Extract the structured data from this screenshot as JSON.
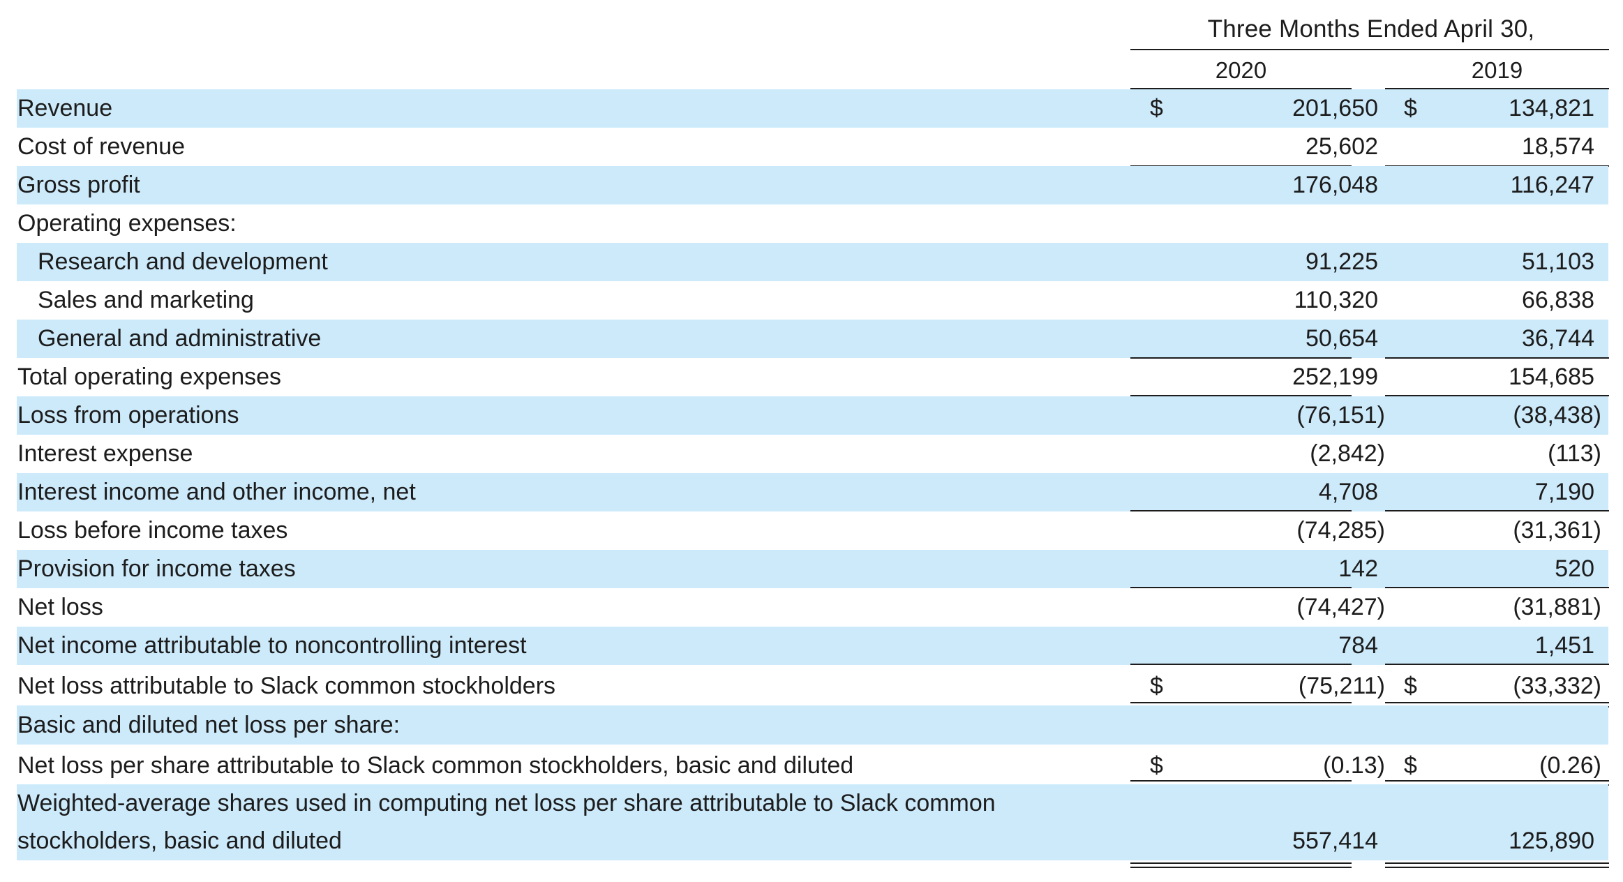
{
  "header": {
    "period_title": "Three Months Ended April 30,",
    "years": [
      "2020",
      "2019"
    ]
  },
  "currency_symbol": "$",
  "rows": [
    {
      "label": "Revenue",
      "v2020": "201,650",
      "v2019": "134,821"
    },
    {
      "label": "Cost of revenue",
      "v2020": "25,602",
      "v2019": "18,574"
    },
    {
      "label": "Gross profit",
      "v2020": "176,048",
      "v2019": "116,247"
    },
    {
      "label": "Operating expenses:",
      "v2020": "",
      "v2019": ""
    },
    {
      "label": "Research and development",
      "v2020": "91,225",
      "v2019": "51,103"
    },
    {
      "label": "Sales and marketing",
      "v2020": "110,320",
      "v2019": "66,838"
    },
    {
      "label": "General and administrative",
      "v2020": "50,654",
      "v2019": "36,744"
    },
    {
      "label": "Total operating expenses",
      "v2020": "252,199",
      "v2019": "154,685"
    },
    {
      "label": "Loss from operations",
      "v2020": "(76,151)",
      "v2019": "(38,438)"
    },
    {
      "label": "Interest expense",
      "v2020": "(2,842)",
      "v2019": "(113)"
    },
    {
      "label": "Interest income and other income, net",
      "v2020": "4,708",
      "v2019": "7,190"
    },
    {
      "label": "Loss before income taxes",
      "v2020": "(74,285)",
      "v2019": "(31,361)"
    },
    {
      "label": "Provision for income taxes",
      "v2020": "142",
      "v2019": "520"
    },
    {
      "label": "Net loss",
      "v2020": "(74,427)",
      "v2019": "(31,881)"
    },
    {
      "label": "Net income attributable to noncontrolling interest",
      "v2020": "784",
      "v2019": "1,451"
    },
    {
      "label": "Net loss attributable to Slack common stockholders",
      "v2020": "(75,211)",
      "v2019": "(33,332)"
    },
    {
      "label": "Basic and diluted net loss per share:",
      "v2020": "",
      "v2019": ""
    },
    {
      "label": "Net loss per share attributable to Slack common stockholders, basic and diluted",
      "v2020": "(0.13)",
      "v2019": "(0.26)"
    },
    {
      "label": "Weighted-average shares used in computing net loss per share attributable to Slack common stockholders, basic and diluted",
      "v2020": "557,414",
      "v2019": "125,890"
    }
  ]
}
